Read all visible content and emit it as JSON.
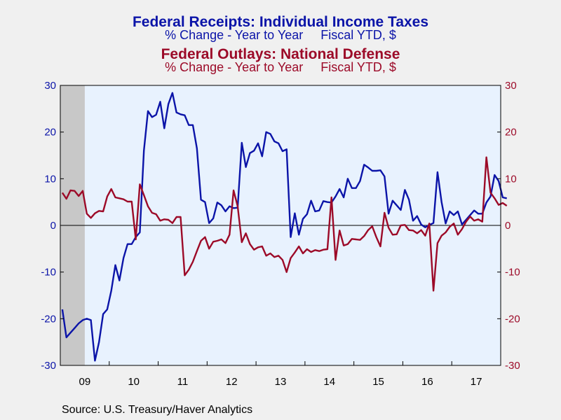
{
  "colors": {
    "receipts": "#0b14a8",
    "outlays": "#9c0a28",
    "plot_bg": "#e8f2fe",
    "recession": "#c8c8c8",
    "page_bg": "#f0f0f0"
  },
  "source": "Source:  U.S. Treasury/Haver Analytics",
  "chart_data": {
    "type": "line",
    "title_lines": [
      {
        "text": "Federal Receipts: Individual Income Taxes",
        "series": 0,
        "style": "title"
      },
      {
        "text": "% Change - Year to Year     Fiscal YTD, $",
        "series": 0,
        "style": "subtitle"
      },
      {
        "text": "Federal Outlays: National Defense",
        "series": 1,
        "style": "title"
      },
      {
        "text": "% Change - Year to Year     Fiscal YTD, $",
        "series": 1,
        "style": "subtitle"
      }
    ],
    "x_tick_labels": [
      "09",
      "10",
      "11",
      "12",
      "13",
      "14",
      "15",
      "16",
      "17"
    ],
    "x_range": [
      "2009-01",
      "2017-12"
    ],
    "ylim": [
      -30,
      30
    ],
    "y_ticks": [
      30,
      20,
      10,
      0,
      -10,
      -20,
      -30
    ],
    "y_tick_labels_left": [
      "30",
      "20",
      "10",
      "0",
      "-10",
      "-20",
      "-30"
    ],
    "y_tick_labels_right": [
      "30",
      "20",
      "10",
      "0",
      "-10",
      "-20",
      "-30"
    ],
    "zero_line": true,
    "grid": false,
    "recession_band": {
      "start": "2009-01",
      "end": "2009-06"
    },
    "series": [
      {
        "name": "Federal Receipts: Individual Income Taxes",
        "axis": "left",
        "start": "2009-01",
        "values": [
          -18,
          -24,
          -23,
          -22,
          -21,
          -20.3,
          -20,
          -20.3,
          -29,
          -25,
          -19,
          -18,
          -14,
          -8.5,
          -11.8,
          -7,
          -4,
          -4,
          -2.5,
          -1.5,
          16,
          24.5,
          23.2,
          23.7,
          26.5,
          20.8,
          26,
          28.4,
          24.2,
          23.8,
          23.6,
          21.5,
          21.5,
          16.5,
          5.5,
          5,
          0.5,
          1.5,
          4.9,
          4.3,
          3,
          4.1,
          3.7,
          3.8,
          17.7,
          12.5,
          15.5,
          16,
          17.6,
          14.8,
          20,
          19.6,
          18,
          17.6,
          15.9,
          16.3,
          -2.5,
          2.6,
          -2,
          1.4,
          2.4,
          5.3,
          3,
          3.2,
          5.2,
          5,
          4.9,
          6.2,
          7.8,
          6,
          10,
          8,
          8,
          9.5,
          13,
          12.4,
          11.7,
          11.7,
          11.8,
          10.5,
          2.5,
          5.3,
          4.3,
          3.3,
          7.6,
          5.5,
          1,
          2,
          0.2,
          -0.4,
          0.1,
          0.5,
          11.4,
          5,
          0.4,
          3,
          2.2,
          3,
          0.2,
          1.2,
          2.2,
          3.2,
          2.5,
          2.5,
          4.9,
          6.2,
          10.8,
          9.5,
          6,
          5.8
        ]
      },
      {
        "name": "Federal Outlays: National Defense",
        "axis": "right",
        "start": "2009-01",
        "values": [
          7,
          5.7,
          7.5,
          7.4,
          6.3,
          7.4,
          2.5,
          1.6,
          2.6,
          3.1,
          3,
          6.2,
          7.8,
          6,
          5.8,
          5.6,
          5.1,
          5.1,
          -3,
          8.8,
          6.5,
          4.1,
          2.7,
          2.4,
          1,
          1.3,
          1.2,
          0.5,
          1.8,
          1.8,
          -10.7,
          -9.5,
          -7.8,
          -5.5,
          -3.3,
          -2.5,
          -5,
          -3.5,
          -3.3,
          -3,
          -3.8,
          -2,
          7.5,
          4.1,
          -3.6,
          -1.7,
          -4,
          -5.2,
          -4.7,
          -4.5,
          -6.5,
          -6,
          -6.8,
          -6.5,
          -7.4,
          -10,
          -7,
          -5.8,
          -4.5,
          -6,
          -5.1,
          -5.7,
          -5.3,
          -5.5,
          -5.2,
          -5.1,
          6,
          -7.4,
          -1.1,
          -4.3,
          -4,
          -2.9,
          -3,
          -3.1,
          -2.3,
          -1,
          -0.2,
          -2.5,
          -4.5,
          2.7,
          -0.5,
          -2,
          -1.9,
          0,
          0.1,
          -1,
          -1.1,
          -1.7,
          -1,
          -2.2,
          0.4,
          -14,
          -3.8,
          -2.2,
          -1.5,
          -0.3,
          0.4,
          -2,
          -0.8,
          0.8,
          1.9,
          1,
          1.3,
          0.8,
          14.6,
          7,
          5.8,
          4.4,
          4.8,
          4.2
        ]
      }
    ]
  }
}
